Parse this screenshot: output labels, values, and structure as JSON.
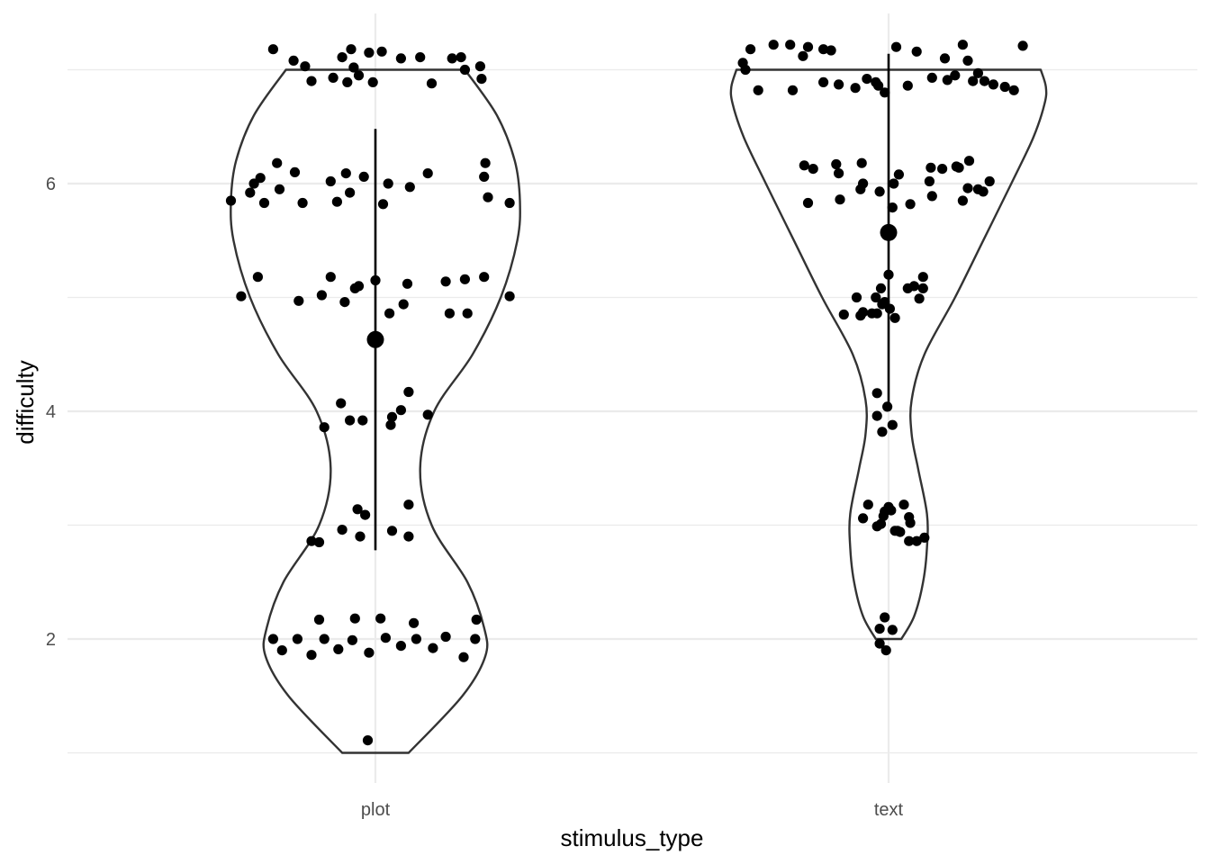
{
  "chart_data": {
    "type": "violin",
    "xlabel": "stimulus_type",
    "ylabel": "difficulty",
    "categories": [
      "plot",
      "text"
    ],
    "y_ticks": [
      2,
      4,
      6
    ],
    "ylim": [
      0.95,
      7.3
    ],
    "grid": true,
    "colors": {
      "outline": "#333333",
      "points": "#000000",
      "grid": "#ebebeb",
      "tick_text": "#4d4d4d"
    },
    "groups": [
      {
        "category": "plot",
        "mean": 4.63,
        "range_low": 2.78,
        "range_high": 6.48,
        "violin_min": 1,
        "violin_max": 7,
        "density_half_width": [
          [
            1.0,
            0.26
          ],
          [
            1.5,
            0.68
          ],
          [
            1.85,
            0.86
          ],
          [
            2.1,
            0.85
          ],
          [
            2.5,
            0.72
          ],
          [
            3.0,
            0.44
          ],
          [
            3.5,
            0.35
          ],
          [
            4.0,
            0.46
          ],
          [
            4.5,
            0.76
          ],
          [
            5.0,
            0.98
          ],
          [
            5.5,
            1.11
          ],
          [
            5.85,
            1.13
          ],
          [
            6.2,
            1.09
          ],
          [
            6.6,
            0.95
          ],
          [
            7.0,
            0.7
          ]
        ],
        "points": [
          [
            -0.8,
            2.0
          ],
          [
            -0.61,
            2.0
          ],
          [
            -0.4,
            2.0
          ],
          [
            -0.18,
            1.99
          ],
          [
            0.08,
            2.01
          ],
          [
            0.32,
            2.0
          ],
          [
            0.55,
            2.02
          ],
          [
            0.78,
            2.0
          ],
          [
            -0.73,
            1.9
          ],
          [
            -0.5,
            1.86
          ],
          [
            -0.29,
            1.91
          ],
          [
            -0.05,
            1.88
          ],
          [
            0.2,
            1.94
          ],
          [
            0.45,
            1.92
          ],
          [
            0.69,
            1.84
          ],
          [
            -0.44,
            2.17
          ],
          [
            -0.16,
            2.18
          ],
          [
            0.04,
            2.18
          ],
          [
            0.3,
            2.14
          ],
          [
            0.79,
            2.17
          ],
          [
            -0.06,
            1.11
          ],
          [
            -0.5,
            2.86
          ],
          [
            -0.26,
            2.96
          ],
          [
            -0.12,
            2.9
          ],
          [
            0.26,
            2.9
          ],
          [
            0.13,
            2.95
          ],
          [
            -0.14,
            3.14
          ],
          [
            0.26,
            3.18
          ],
          [
            -0.08,
            3.09
          ],
          [
            -0.44,
            2.85
          ],
          [
            -0.27,
            4.07
          ],
          [
            -0.2,
            3.92
          ],
          [
            -0.1,
            3.92
          ],
          [
            0.12,
            3.88
          ],
          [
            0.13,
            3.95
          ],
          [
            0.2,
            4.01
          ],
          [
            0.26,
            4.17
          ],
          [
            0.41,
            3.97
          ],
          [
            -0.4,
            3.86
          ],
          [
            -1.13,
            5.85
          ],
          [
            -0.98,
            5.92
          ],
          [
            -0.87,
            5.83
          ],
          [
            -0.75,
            5.95
          ],
          [
            -0.57,
            5.83
          ],
          [
            -0.3,
            5.84
          ],
          [
            -0.2,
            5.92
          ],
          [
            0.06,
            5.82
          ],
          [
            0.27,
            5.97
          ],
          [
            0.88,
            5.88
          ],
          [
            1.05,
            5.83
          ],
          [
            -0.95,
            6.0
          ],
          [
            -0.35,
            6.02
          ],
          [
            0.1,
            6.0
          ],
          [
            -0.77,
            6.18
          ],
          [
            -0.63,
            6.1
          ],
          [
            -0.23,
            6.09
          ],
          [
            -0.09,
            6.06
          ],
          [
            0.41,
            6.09
          ],
          [
            0.86,
            6.18
          ],
          [
            0.85,
            6.06
          ],
          [
            -0.9,
            6.05
          ],
          [
            -0.92,
            5.18
          ],
          [
            -0.6,
            4.97
          ],
          [
            -0.42,
            5.02
          ],
          [
            -0.35,
            5.18
          ],
          [
            -0.24,
            4.96
          ],
          [
            -0.13,
            5.1
          ],
          [
            0.0,
            5.15
          ],
          [
            0.25,
            5.12
          ],
          [
            0.55,
            5.14
          ],
          [
            0.85,
            5.18
          ],
          [
            0.7,
            5.16
          ],
          [
            0.58,
            4.86
          ],
          [
            0.72,
            4.86
          ],
          [
            0.11,
            4.86
          ],
          [
            0.22,
            4.94
          ],
          [
            -1.05,
            5.01
          ],
          [
            1.05,
            5.01
          ],
          [
            -0.16,
            5.08
          ],
          [
            -0.8,
            7.18
          ],
          [
            -0.64,
            7.08
          ],
          [
            -0.55,
            7.03
          ],
          [
            -0.5,
            6.9
          ],
          [
            -0.33,
            6.93
          ],
          [
            -0.26,
            7.11
          ],
          [
            -0.19,
            7.18
          ],
          [
            -0.05,
            7.15
          ],
          [
            0.05,
            7.16
          ],
          [
            0.2,
            7.1
          ],
          [
            0.35,
            7.11
          ],
          [
            0.44,
            6.88
          ],
          [
            0.6,
            7.1
          ],
          [
            0.67,
            7.11
          ],
          [
            0.82,
            7.03
          ],
          [
            0.7,
            7.0
          ],
          [
            -0.17,
            7.02
          ],
          [
            -0.13,
            6.95
          ],
          [
            -0.22,
            6.89
          ],
          [
            0.83,
            6.92
          ],
          [
            -0.02,
            6.89
          ]
        ]
      },
      {
        "category": "text",
        "mean": 5.57,
        "range_low": 4.0,
        "range_high": 7.14,
        "violin_min": 2,
        "violin_max": 7,
        "density_half_width": [
          [
            2.0,
            0.1
          ],
          [
            2.2,
            0.2
          ],
          [
            2.5,
            0.27
          ],
          [
            2.8,
            0.3
          ],
          [
            3.1,
            0.3
          ],
          [
            3.5,
            0.23
          ],
          [
            3.8,
            0.18
          ],
          [
            4.1,
            0.18
          ],
          [
            4.5,
            0.28
          ],
          [
            5.0,
            0.52
          ],
          [
            5.5,
            0.74
          ],
          [
            6.0,
            0.96
          ],
          [
            6.4,
            1.13
          ],
          [
            6.7,
            1.22
          ],
          [
            6.85,
            1.23
          ],
          [
            7.0,
            1.19
          ]
        ],
        "points": [
          [
            -1.14,
            7.06
          ],
          [
            -1.08,
            7.18
          ],
          [
            -0.9,
            7.22
          ],
          [
            -0.77,
            7.22
          ],
          [
            -0.63,
            7.2
          ],
          [
            -0.45,
            7.17
          ],
          [
            -0.51,
            7.18
          ],
          [
            -0.67,
            7.12
          ],
          [
            0.06,
            7.2
          ],
          [
            0.22,
            7.16
          ],
          [
            0.44,
            7.1
          ],
          [
            0.58,
            7.22
          ],
          [
            0.62,
            7.08
          ],
          [
            1.05,
            7.21
          ],
          [
            -1.12,
            7.0
          ],
          [
            -1.02,
            6.82
          ],
          [
            -0.75,
            6.82
          ],
          [
            -0.51,
            6.89
          ],
          [
            -0.39,
            6.87
          ],
          [
            -0.26,
            6.84
          ],
          [
            -0.17,
            6.92
          ],
          [
            -0.1,
            6.89
          ],
          [
            -0.08,
            6.86
          ],
          [
            -0.03,
            6.8
          ],
          [
            0.15,
            6.86
          ],
          [
            0.34,
            6.93
          ],
          [
            0.46,
            6.91
          ],
          [
            0.52,
            6.95
          ],
          [
            0.66,
            6.9
          ],
          [
            0.7,
            6.97
          ],
          [
            0.82,
            6.87
          ],
          [
            0.91,
            6.85
          ],
          [
            0.98,
            6.82
          ],
          [
            0.75,
            6.9
          ],
          [
            -0.66,
            6.16
          ],
          [
            -0.59,
            6.13
          ],
          [
            -0.41,
            6.17
          ],
          [
            -0.39,
            6.09
          ],
          [
            -0.21,
            6.18
          ],
          [
            -0.2,
            6.0
          ],
          [
            0.04,
            6.0
          ],
          [
            0.08,
            6.08
          ],
          [
            0.32,
            6.02
          ],
          [
            0.33,
            6.14
          ],
          [
            0.42,
            6.13
          ],
          [
            0.53,
            6.15
          ],
          [
            0.55,
            6.14
          ],
          [
            0.63,
            6.2
          ],
          [
            0.7,
            5.95
          ],
          [
            0.62,
            5.96
          ],
          [
            0.79,
            6.02
          ],
          [
            -0.63,
            5.83
          ],
          [
            -0.38,
            5.86
          ],
          [
            0.03,
            5.79
          ],
          [
            0.17,
            5.82
          ],
          [
            0.34,
            5.89
          ],
          [
            0.58,
            5.85
          ],
          [
            0.74,
            5.93
          ],
          [
            -0.22,
            5.95
          ],
          [
            -0.07,
            5.93
          ],
          [
            -0.35,
            4.85
          ],
          [
            -0.22,
            4.84
          ],
          [
            -0.2,
            4.87
          ],
          [
            -0.13,
            4.86
          ],
          [
            -0.1,
            5.0
          ],
          [
            -0.06,
            5.08
          ],
          [
            -0.03,
            4.96
          ],
          [
            0.01,
            4.9
          ],
          [
            0.0,
            5.2
          ],
          [
            0.05,
            4.82
          ],
          [
            0.15,
            5.08
          ],
          [
            0.2,
            5.1
          ],
          [
            0.27,
            5.08
          ],
          [
            0.27,
            5.18
          ],
          [
            0.24,
            4.99
          ],
          [
            -0.09,
            4.86
          ],
          [
            -0.05,
            4.94
          ],
          [
            -0.25,
            5.0
          ],
          [
            -0.09,
            4.16
          ],
          [
            -0.09,
            3.96
          ],
          [
            -0.05,
            3.82
          ],
          [
            -0.01,
            4.04
          ],
          [
            0.03,
            3.88
          ],
          [
            -0.2,
            3.06
          ],
          [
            -0.16,
            3.18
          ],
          [
            -0.09,
            2.99
          ],
          [
            -0.06,
            3.01
          ],
          [
            -0.03,
            3.12
          ],
          [
            0.0,
            3.16
          ],
          [
            0.05,
            2.95
          ],
          [
            0.07,
            2.95
          ],
          [
            0.09,
            2.94
          ],
          [
            0.12,
            3.18
          ],
          [
            0.16,
            3.07
          ],
          [
            0.17,
            3.02
          ],
          [
            0.16,
            2.86
          ],
          [
            0.22,
            2.86
          ],
          [
            0.28,
            2.89
          ],
          [
            -0.04,
            3.08
          ],
          [
            0.02,
            3.13
          ],
          [
            -0.07,
            2.09
          ],
          [
            -0.03,
            2.19
          ],
          [
            0.03,
            2.08
          ],
          [
            -0.07,
            1.96
          ],
          [
            -0.02,
            1.9
          ]
        ]
      }
    ]
  }
}
